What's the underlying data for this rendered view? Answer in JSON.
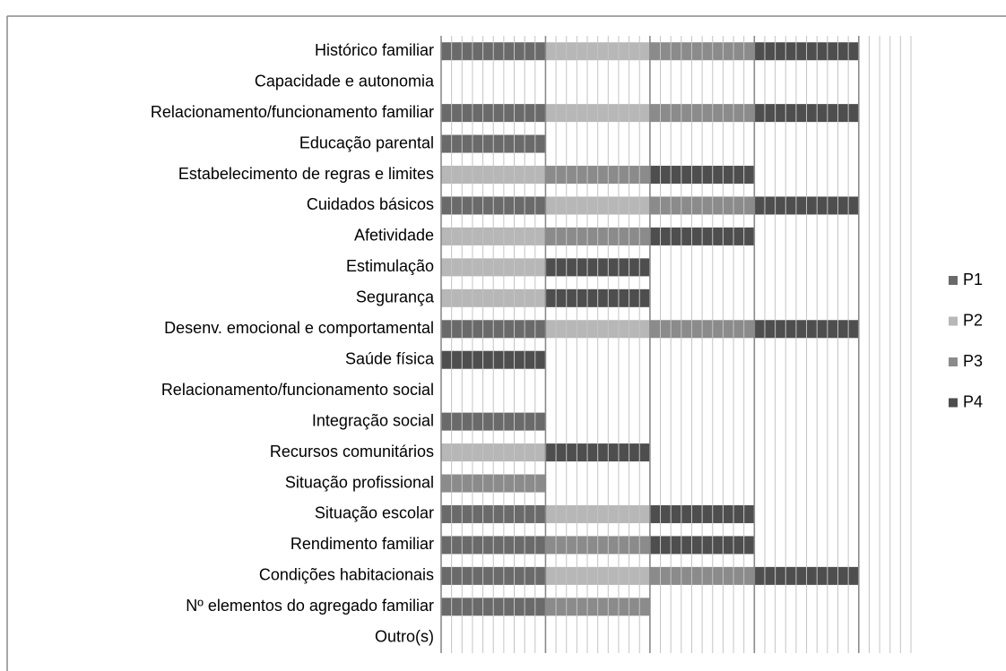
{
  "chart_data": {
    "type": "bar",
    "orientation": "horizontal",
    "stacked": true,
    "categories": [
      "Histórico familiar",
      "Capacidade e autonomia",
      "Relacionamento/funcionamento familiar",
      "Educação parental",
      "Estabelecimento de regras e limites",
      "Cuidados básicos",
      "Afetividade",
      "Estimulação",
      "Segurança",
      "Desenv. emocional e comportamental",
      "Saúde física",
      "Relacionamento/funcionamento social",
      "Integração social",
      "Recursos comunitários",
      "Situação profissional",
      "Situação escolar",
      "Rendimento familiar",
      "Condições habitacionais",
      "Nº elementos do agregado familiar",
      "Outro(s)"
    ],
    "series": [
      {
        "name": "P1",
        "color": "#6a6a6a",
        "values": [
          1,
          0,
          1,
          1,
          0,
          1,
          0,
          0,
          0,
          1,
          0,
          0,
          1,
          0,
          0,
          1,
          1,
          1,
          1,
          0
        ]
      },
      {
        "name": "P2",
        "color": "#b7b7b7",
        "values": [
          1,
          0,
          1,
          0,
          1,
          1,
          1,
          1,
          1,
          1,
          0,
          0,
          0,
          1,
          0,
          1,
          0,
          1,
          0,
          0
        ]
      },
      {
        "name": "P3",
        "color": "#8b8b8b",
        "values": [
          1,
          0,
          1,
          0,
          1,
          1,
          1,
          0,
          0,
          1,
          0,
          0,
          0,
          0,
          1,
          0,
          1,
          1,
          1,
          0
        ]
      },
      {
        "name": "P4",
        "color": "#4e4e4e",
        "values": [
          1,
          0,
          1,
          0,
          1,
          1,
          1,
          1,
          1,
          1,
          1,
          0,
          0,
          1,
          0,
          1,
          1,
          1,
          0,
          0
        ]
      }
    ],
    "xlim": [
      0,
      4.5
    ],
    "xticks": [
      0,
      0.1,
      0.2,
      0.3,
      0.4,
      0.5,
      0.6,
      0.7,
      0.8,
      0.9,
      1,
      1.1,
      1.2,
      1.3,
      1.4,
      1.5,
      1.6,
      1.7,
      1.8,
      1.9,
      2,
      2.1,
      2.2,
      2.3,
      2.4,
      2.5,
      2.6,
      2.7,
      2.8,
      2.9,
      3,
      3.1,
      3.2,
      3.3,
      3.4,
      3.5,
      3.6,
      3.7,
      3.8,
      3.9,
      4,
      4.1,
      4.2,
      4.3,
      4.4,
      4.5
    ],
    "grid": true,
    "legend": "right"
  }
}
